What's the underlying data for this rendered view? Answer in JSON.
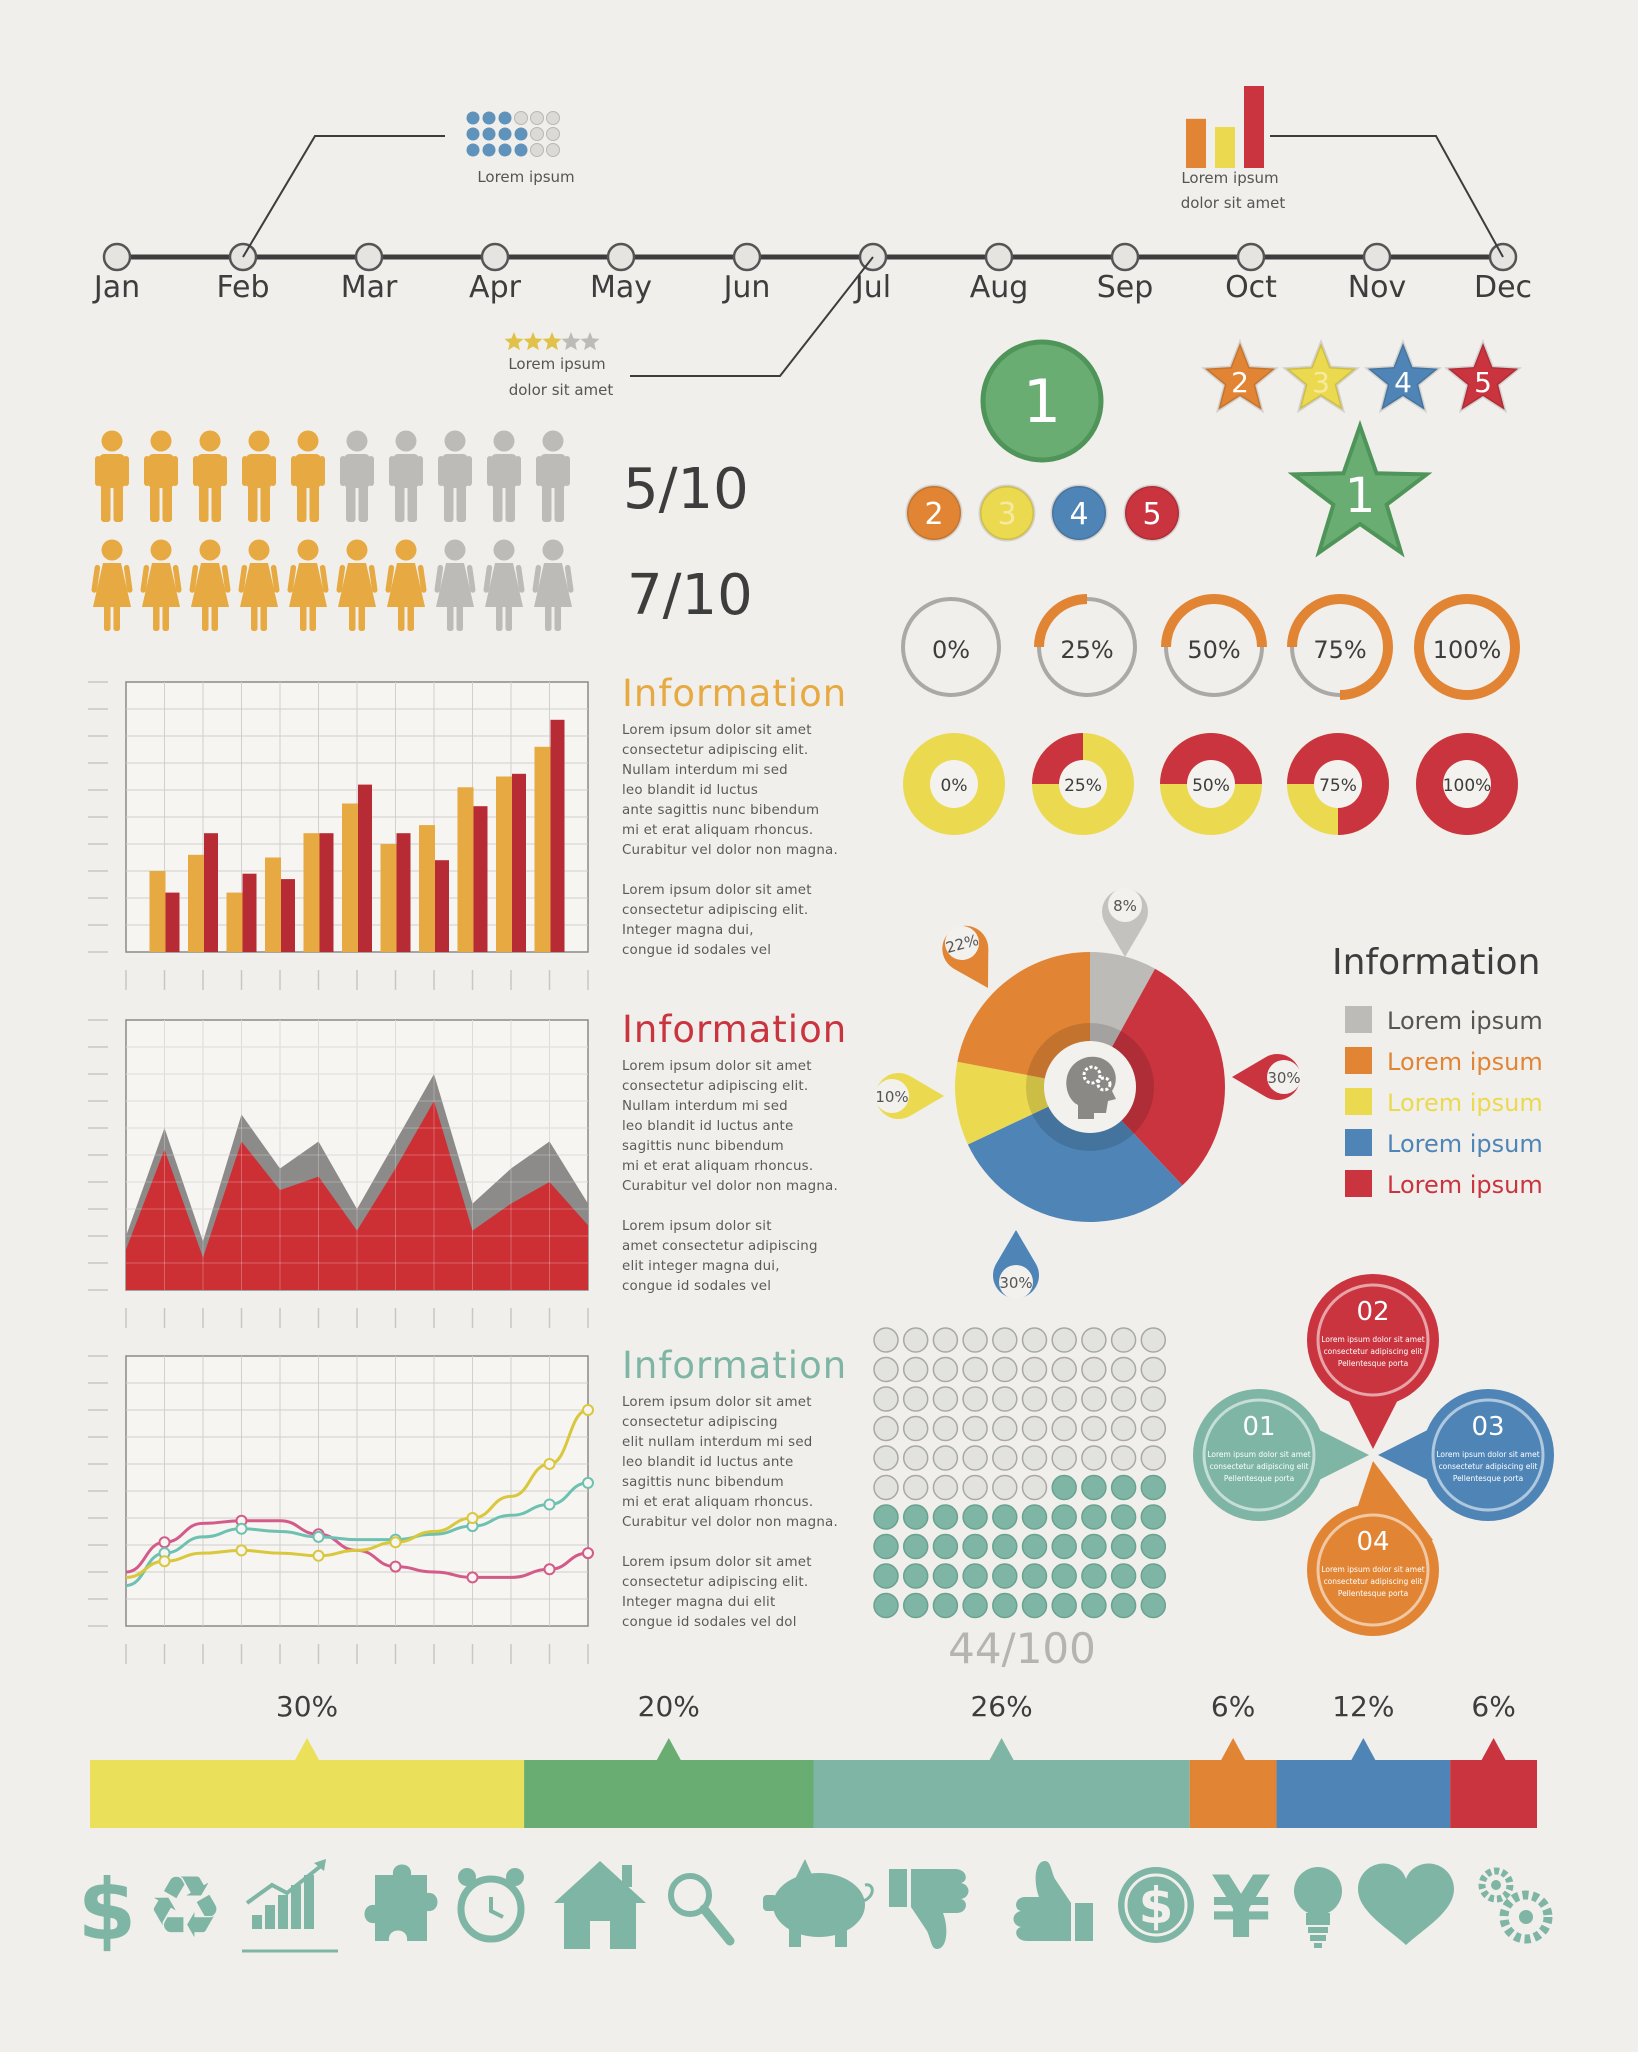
{
  "colors": {
    "orange": "#e18535",
    "yellow": "#ebd950",
    "red": "#c9343f",
    "green": "#6aad73",
    "teal": "#7eb5a5",
    "blue": "#4f85b6",
    "gray": "#bcbbb8",
    "dark": "#3d3d3d",
    "barOrange": "#e7a941",
    "barRed": "#b72b34",
    "figureOrange": "#e7a941",
    "lineRose": "#d35b89",
    "lineTeal": "#6ec1b1",
    "lineYellow": "#d9c73c",
    "bg": "#f1efeb"
  },
  "timeline": {
    "months": [
      "Jan",
      "Feb",
      "Mar",
      "Apr",
      "May",
      "Jun",
      "Jul",
      "Aug",
      "Sep",
      "Oct",
      "Nov",
      "Dec"
    ],
    "callout_left": "Lorem ipsum",
    "callout_right": [
      "Lorem ipsum",
      "dolor sit amet"
    ],
    "callout_bottom": [
      "Lorem ipsum",
      "dolor sit amet"
    ],
    "dot_matrix": {
      "filled": 9,
      "total": 18
    },
    "mini_bars": [
      0.6,
      0.5,
      1.0
    ],
    "rating": {
      "stars": 3,
      "of": 5
    }
  },
  "people": {
    "male_ratio": "5/10",
    "male_filled": 5,
    "female_ratio": "7/10",
    "female_filled": 7,
    "total": 10
  },
  "rank": {
    "first": "1",
    "others": [
      "2",
      "3",
      "4",
      "5"
    ],
    "stars_first": "1",
    "stars_others": [
      "2",
      "3",
      "4",
      "5"
    ]
  },
  "rings": [
    {
      "label": "0%",
      "value": 0
    },
    {
      "label": "25%",
      "value": 25
    },
    {
      "label": "50%",
      "value": 50
    },
    {
      "label": "75%",
      "value": 75
    },
    {
      "label": "100%",
      "value": 100
    }
  ],
  "donuts": [
    {
      "label": "0%",
      "value": 0
    },
    {
      "label": "25%",
      "value": 25
    },
    {
      "label": "50%",
      "value": 50
    },
    {
      "label": "75%",
      "value": 75
    },
    {
      "label": "100%",
      "value": 100
    }
  ],
  "info1": {
    "title": "Information",
    "p1": "Lorem ipsum dolor sit amet\nconsectetur adipiscing elit.\nNullam interdum mi sed\nleo blandit id luctus\nante sagittis nunc bibendum\nmi et erat aliquam rhoncus.\nCurabitur vel dolor non magna.",
    "p2": "Lorem ipsum dolor sit amet\nconsectetur adipiscing elit.\nInteger magna dui,\ncongue id sodales vel"
  },
  "info2": {
    "title": "Information",
    "p1": "Lorem ipsum dolor sit amet\nconsectetur adipiscing elit.\nNullam interdum mi sed\nleo blandit id luctus ante\nsagittis nunc bibendum\nmi et erat aliquam rhoncus.\nCurabitur vel dolor non magna.",
    "p2": "Lorem ipsum dolor sit\namet consectetur adipiscing\nelit integer magna dui,\ncongue id sodales vel"
  },
  "info3": {
    "title": "Information",
    "p1": "Lorem ipsum dolor sit amet\nconsectetur adipiscing\nelit nullam interdum mi sed\nleo blandit id luctus ante\nsagittis nunc bibendum\nmi et erat aliquam rhoncus.\nCurabitur vel dolor non magna.",
    "p2": "Lorem ipsum dolor sit amet\nconsectetur adipiscing elit.\nInteger magna dui elit\ncongue id sodales vel dol"
  },
  "pie_legend": {
    "title": "Information",
    "items": [
      {
        "label": "Lorem ipsum",
        "color": "#bcbbb8"
      },
      {
        "label": "Lorem ipsum",
        "color": "#e18535"
      },
      {
        "label": "Lorem ipsum",
        "color": "#ebd950"
      },
      {
        "label": "Lorem ipsum",
        "color": "#4f85b6"
      },
      {
        "label": "Lorem ipsum",
        "color": "#c9343f"
      }
    ]
  },
  "waffle": {
    "label": "44/100",
    "filled": 44,
    "total": 100
  },
  "petals": [
    {
      "num": "01",
      "text": [
        "Lorem ipsum dolor sit amet",
        "consectetur adipiscing elit",
        "Pellentesque porta"
      ],
      "color": "#7eb5a5"
    },
    {
      "num": "02",
      "text": [
        "Lorem ipsum dolor sit amet",
        "consectetur adipiscing elit",
        "Pellentesque porta"
      ],
      "color": "#c9343f"
    },
    {
      "num": "03",
      "text": [
        "Lorem ipsum dolor sit amet",
        "consectetur adipiscing elit",
        "Pellentesque porta"
      ],
      "color": "#4f85b6"
    },
    {
      "num": "04",
      "text": [
        "Lorem ipsum dolor sit amet",
        "consectetur adipiscing elit",
        "Pellentesque porta"
      ],
      "color": "#e18535"
    }
  ],
  "segments": [
    {
      "label": "30%",
      "value": 30,
      "color": "#ebe05a"
    },
    {
      "label": "20%",
      "value": 20,
      "color": "#6aad73"
    },
    {
      "label": "26%",
      "value": 26,
      "color": "#7eb5a5"
    },
    {
      "label": "6%",
      "value": 6,
      "color": "#e18535"
    },
    {
      "label": "12%",
      "value": 12,
      "color": "#4f85b6"
    },
    {
      "label": "6%",
      "value": 6,
      "color": "#c9343f"
    }
  ],
  "icons": [
    "dollar-icon",
    "recycle-icon",
    "growth-chart-icon",
    "puzzle-icon",
    "alarm-clock-icon",
    "house-icon",
    "magnifier-icon",
    "piggy-bank-icon",
    "thumbs-down-icon",
    "thumbs-up-icon",
    "dollar-coin-icon",
    "yen-icon",
    "lightbulb-icon",
    "heart-icon",
    "gears-icon"
  ],
  "chart_data": [
    {
      "type": "bar",
      "categories": [
        "1",
        "2",
        "3",
        "4",
        "5",
        "6",
        "7",
        "8",
        "9",
        "10",
        "11"
      ],
      "series": [
        {
          "values": [
            30,
            36,
            22,
            35,
            44,
            55,
            40,
            47,
            61,
            65,
            76
          ]
        },
        {
          "values": [
            22,
            44,
            29,
            27,
            44,
            62,
            44,
            34,
            54,
            66,
            86
          ]
        }
      ],
      "ylim": [
        0,
        100
      ],
      "grid": true
    },
    {
      "type": "area",
      "x": [
        0,
        1,
        2,
        3,
        4,
        5,
        6,
        7,
        8,
        9,
        10,
        11,
        12
      ],
      "series": [
        {
          "values": [
            20,
            60,
            18,
            65,
            45,
            55,
            30,
            55,
            80,
            32,
            45,
            55,
            32
          ]
        },
        {
          "values": [
            15,
            52,
            12,
            55,
            37,
            42,
            22,
            45,
            70,
            22,
            32,
            40,
            24
          ]
        }
      ],
      "ylim": [
        0,
        100
      ],
      "grid": true
    },
    {
      "type": "line",
      "x": [
        0,
        1,
        2,
        3,
        4,
        5,
        6,
        7,
        8,
        9,
        10,
        11,
        12
      ],
      "series": [
        {
          "values": [
            20,
            31,
            38,
            39,
            39,
            34,
            28,
            22,
            20,
            18,
            18,
            21,
            27
          ]
        },
        {
          "values": [
            15,
            27,
            33,
            36,
            35,
            33,
            32,
            32,
            34,
            37,
            41,
            45,
            53
          ]
        },
        {
          "values": [
            18,
            24,
            27,
            28,
            27,
            26,
            28,
            31,
            35,
            40,
            48,
            60,
            80
          ]
        }
      ],
      "ylim": [
        0,
        100
      ],
      "grid": true
    },
    {
      "type": "pie",
      "labels": [
        "8%",
        "30%",
        "30%",
        "10%",
        "22%"
      ],
      "values": [
        8,
        30,
        30,
        10,
        22
      ],
      "colors": [
        "#bcbbb8",
        "#c9343f",
        "#4f85b6",
        "#ebd950",
        "#e18535"
      ]
    }
  ]
}
